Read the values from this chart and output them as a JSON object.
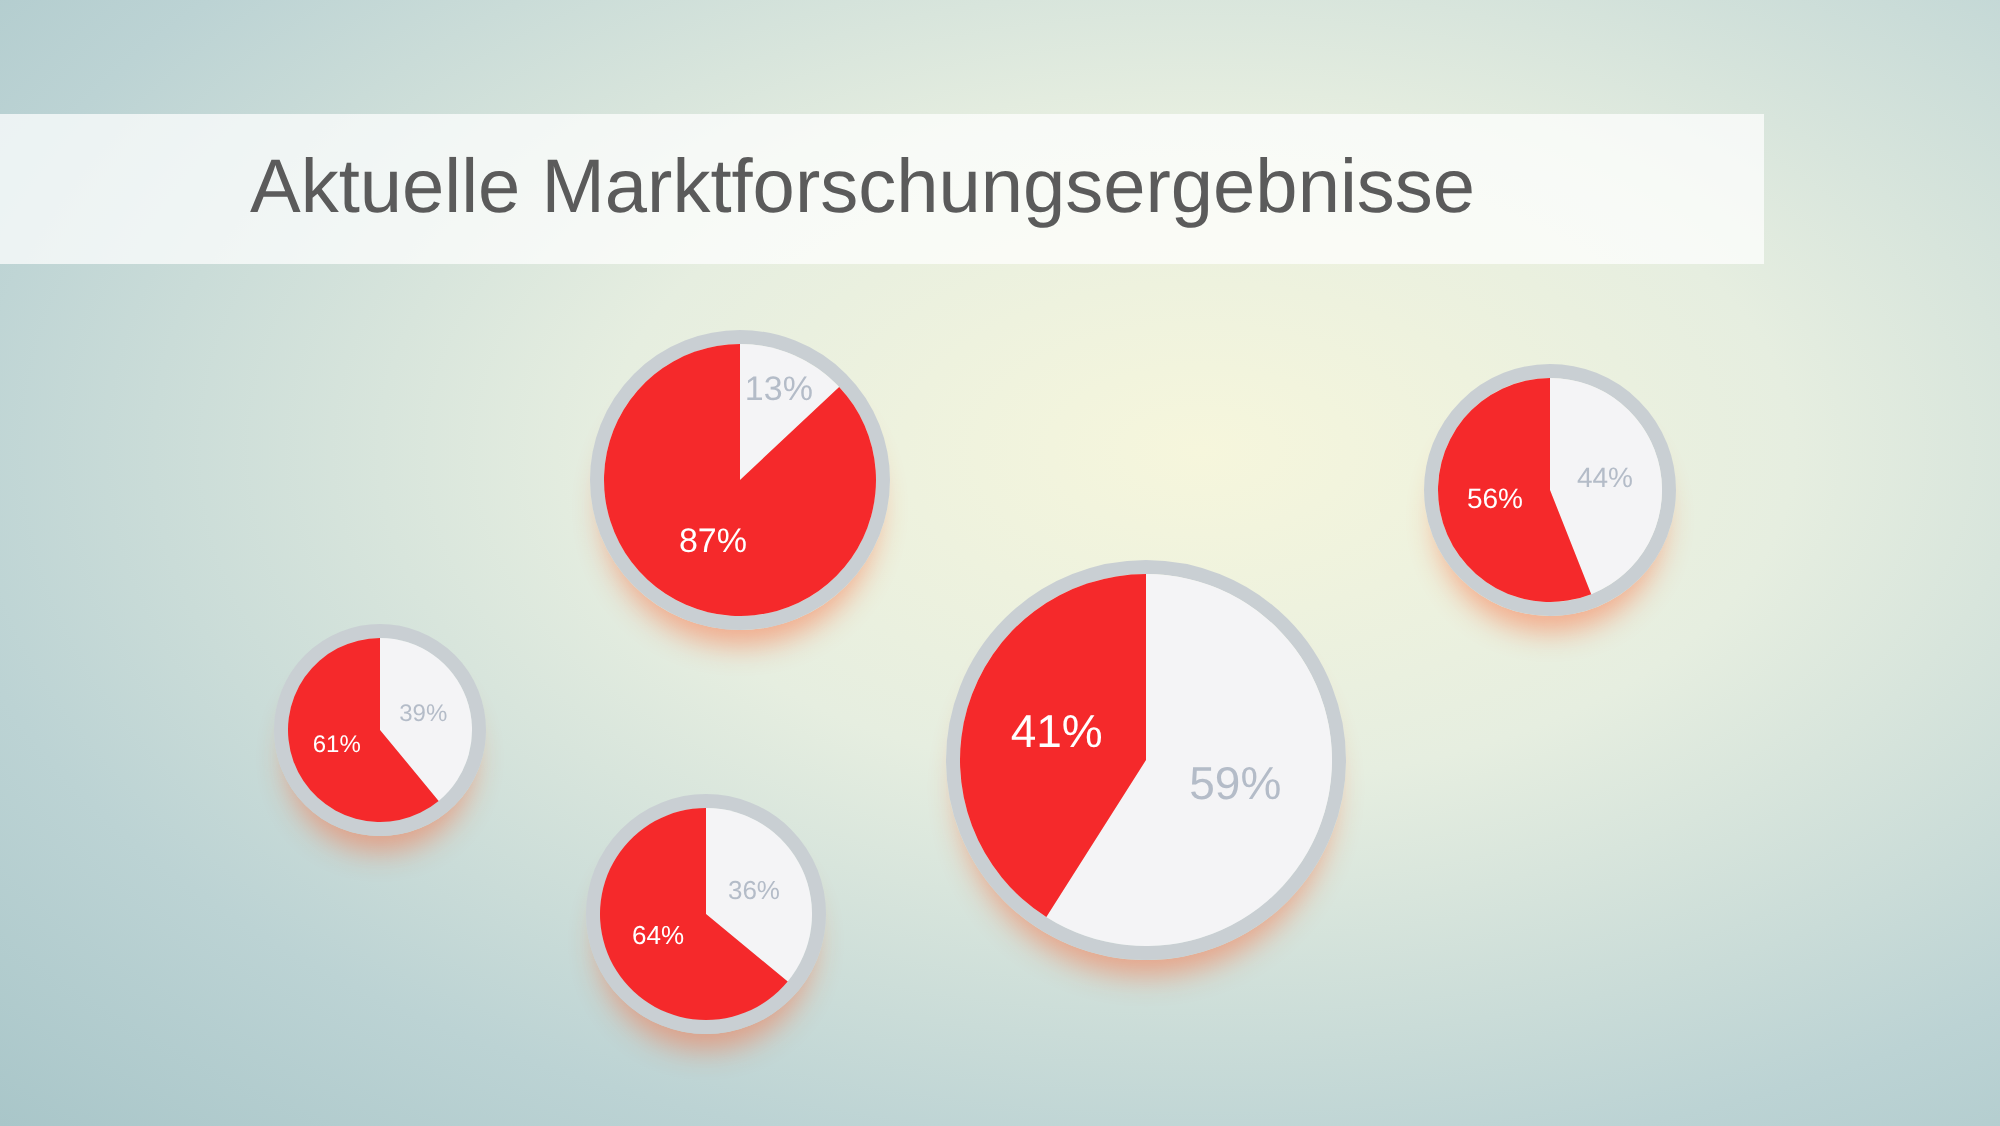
{
  "chart_data": [
    {
      "type": "pie",
      "title": "Aktuelle Marktforschungsergebnisse",
      "categories": [
        null,
        null
      ],
      "values": [
        13,
        87
      ],
      "colors": [
        "#f4f4f6",
        "#f5292b"
      ],
      "value_labels": [
        "13%",
        "87%"
      ]
    },
    {
      "type": "pie",
      "categories": [
        null,
        null
      ],
      "values": [
        44,
        56
      ],
      "colors": [
        "#f4f4f6",
        "#f5292b"
      ],
      "value_labels": [
        "44%",
        "56%"
      ]
    },
    {
      "type": "pie",
      "categories": [
        null,
        null
      ],
      "values": [
        39,
        61
      ],
      "colors": [
        "#f4f4f6",
        "#f5292b"
      ],
      "value_labels": [
        "39%",
        "61%"
      ]
    },
    {
      "type": "pie",
      "categories": [
        null,
        null
      ],
      "values": [
        59,
        41
      ],
      "colors": [
        "#f4f4f6",
        "#f5292b"
      ],
      "value_labels": [
        "59%",
        "41%"
      ]
    },
    {
      "type": "pie",
      "categories": [
        null,
        null
      ],
      "values": [
        36,
        64
      ],
      "colors": [
        "#f4f4f6",
        "#f5292b"
      ],
      "value_labels": [
        "36%",
        "64%"
      ]
    }
  ]
}
